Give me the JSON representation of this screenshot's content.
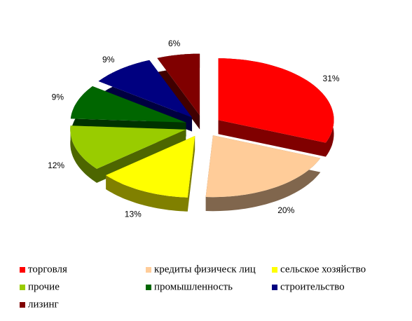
{
  "chart_data": {
    "type": "pie",
    "categories": [
      "торговля",
      "кредиты физическ лиц",
      "сельское хозяйство",
      "прочие",
      "промышленность",
      "строительство",
      "лизинг"
    ],
    "values": [
      31,
      20,
      13,
      12,
      9,
      9,
      6
    ],
    "value_labels": [
      "31%",
      "20%",
      "13%",
      "12%",
      "9%",
      "9%",
      "6%"
    ],
    "colors": [
      "#ff0000",
      "#ffcc99",
      "#ffff00",
      "#99cc00",
      "#006600",
      "#000080",
      "#800000"
    ],
    "legend": "bottom"
  }
}
